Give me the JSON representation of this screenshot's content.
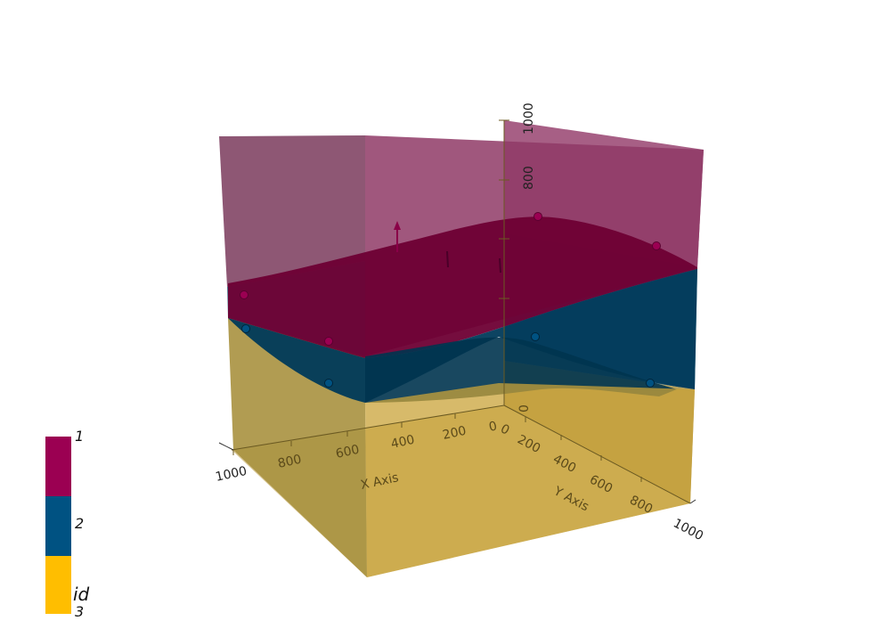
{
  "axes": {
    "x": {
      "label": "X Axis",
      "ticks": [
        "1000",
        "800",
        "600",
        "400",
        "200",
        "0"
      ]
    },
    "y": {
      "label": "Y Axis",
      "ticks": [
        "0",
        "200",
        "400",
        "600",
        "800",
        "1000"
      ]
    },
    "z": {
      "ticks": [
        "0",
        "800",
        "1000"
      ]
    }
  },
  "legend": {
    "title": "id",
    "items": [
      {
        "label": "1",
        "color": "#9b0052"
      },
      {
        "label": "2",
        "color": "#005282"
      },
      {
        "label": "3",
        "color": "#ffbe00"
      }
    ]
  },
  "colors": {
    "unit1": "#9b0052",
    "unit2": "#005282",
    "unit3": "#ffbe00"
  }
}
